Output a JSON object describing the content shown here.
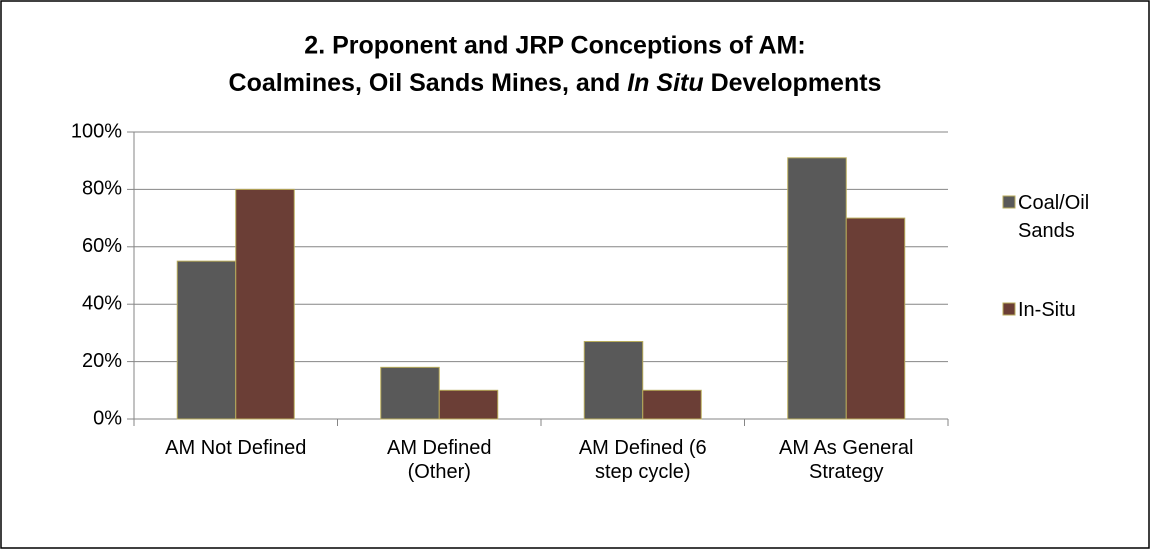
{
  "chart_data": {
    "type": "bar",
    "title": [
      "2. Proponent and JRP Conceptions of AM:",
      "Coalmines, Oil Sands Mines, and ",
      "In Situ",
      " Developments"
    ],
    "categories": [
      "AM Not Defined",
      "AM Defined (Other)",
      "AM Defined (6 step cycle)",
      "AM As General Strategy"
    ],
    "series": [
      {
        "name": "Coal/Oil Sands",
        "color": "#595959",
        "values": [
          55,
          18,
          27,
          91
        ]
      },
      {
        "name": "In-Situ",
        "color": "#6b3e36",
        "values": [
          80,
          10,
          10,
          70
        ]
      }
    ],
    "ylim": [
      0,
      100
    ],
    "yticks": [
      {
        "value": 0,
        "label": "0%"
      },
      {
        "value": 20,
        "label": "20%"
      },
      {
        "value": 40,
        "label": "40%"
      },
      {
        "value": 60,
        "label": "60%"
      },
      {
        "value": 80,
        "label": "80%"
      },
      {
        "value": 100,
        "label": "100%"
      }
    ],
    "grid": true,
    "legend": "right"
  }
}
